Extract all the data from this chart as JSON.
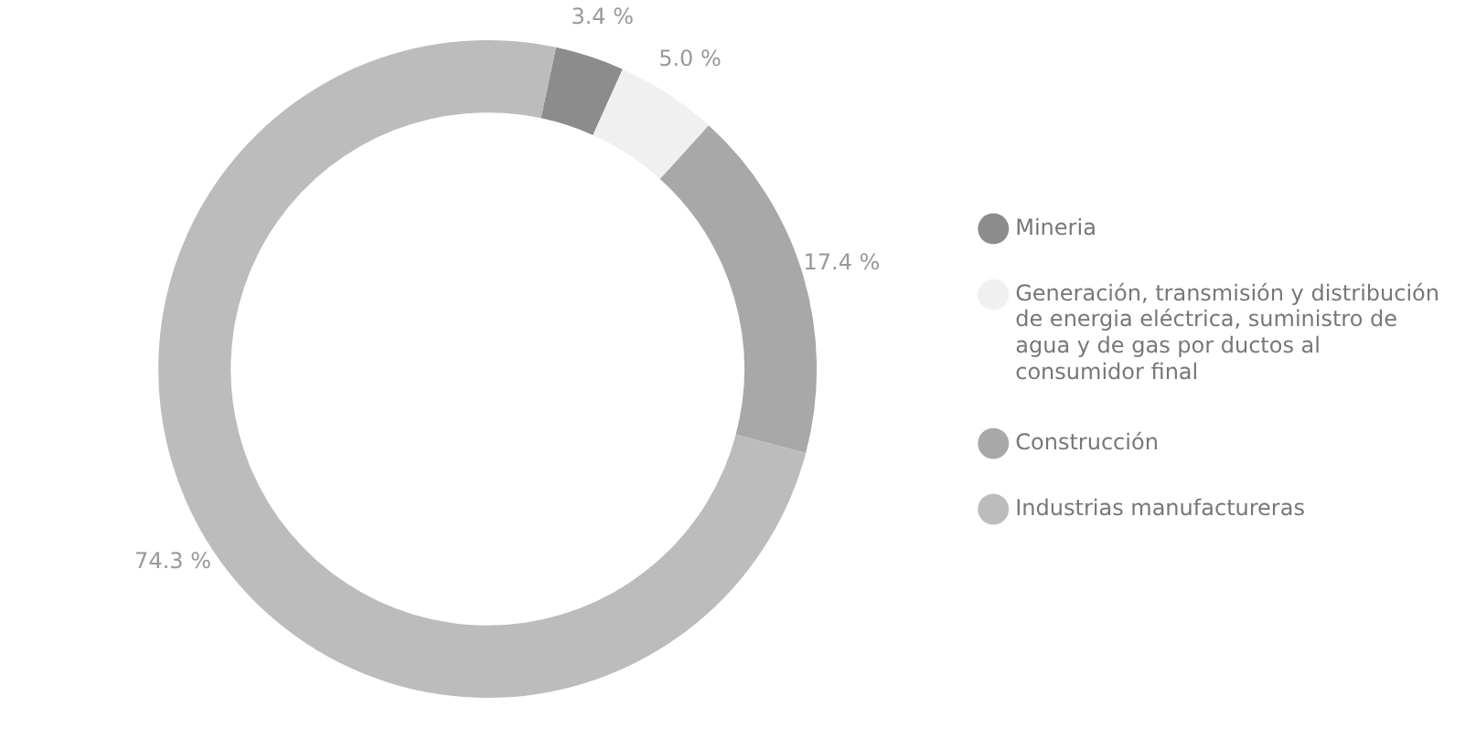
{
  "chart_data": {
    "type": "donut",
    "categories": [
      "Mineria",
      "Generación, transmisión y distribución de energia eléctrica, suministro de agua y de gas por ductos al consumidor final",
      "Construcción",
      "Industrias manufactureras"
    ],
    "values": [
      3.4,
      5.0,
      17.4,
      74.3
    ],
    "colors": [
      "#8c8c8c",
      "#f0f0f0",
      "#a8a8a8",
      "#bcbcbc"
    ],
    "value_labels": [
      "3.4 %",
      "5.0 %",
      "17.4 %",
      "74.3 %"
    ],
    "legend": "right"
  }
}
